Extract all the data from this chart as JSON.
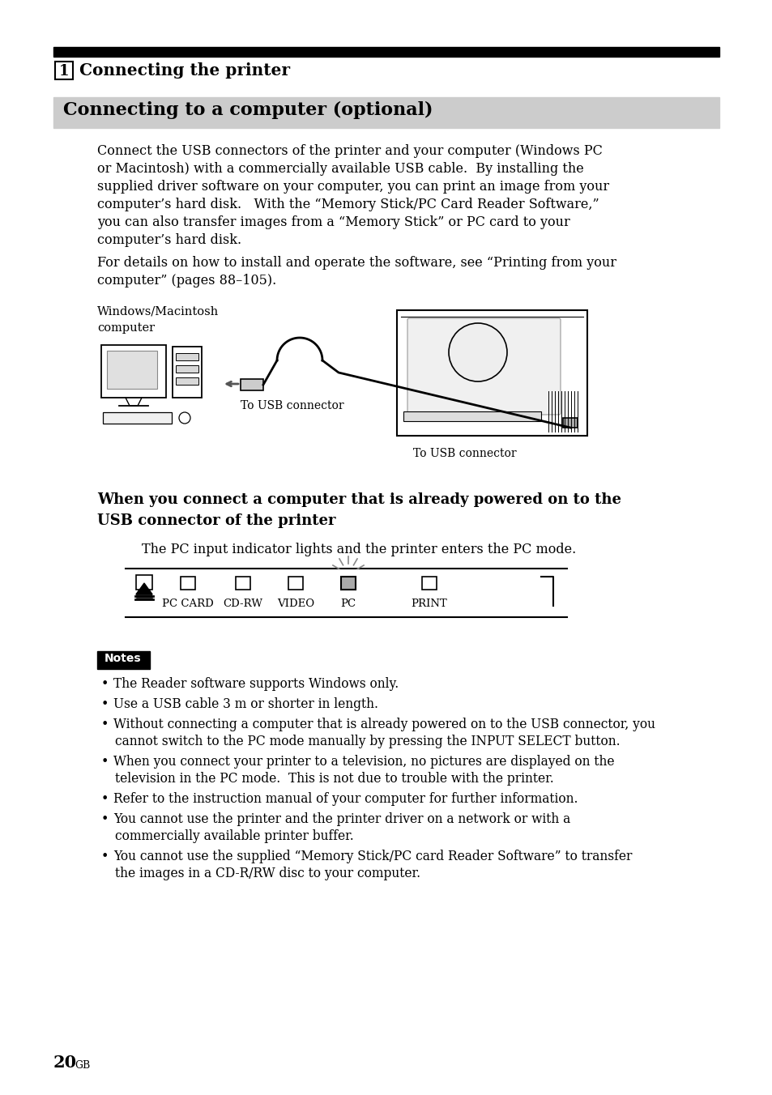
{
  "page_bg": "#ffffff",
  "top_bar_color": "#000000",
  "section_bg": "#cccccc",
  "notes_bg": "#000000",
  "notes_text_color": "#ffffff",
  "title1_num": "1",
  "title1_text": "Connecting the printer",
  "section_title": "Connecting to a computer (optional)",
  "body_text1_lines": [
    "Connect the USB connectors of the printer and your computer (Windows PC",
    "or Macintosh) with a commercially available USB cable.  By installing the",
    "supplied driver software on your computer, you can print an image from your",
    "computer’s hard disk.   With the “Memory Stick/PC Card Reader Software,”",
    "you can also transfer images from a “Memory Stick” or PC card to your",
    "computer’s hard disk."
  ],
  "body_text2_lines": [
    "For details on how to install and operate the software, see “Printing from your",
    "computer” (pages 88–105)."
  ],
  "label_computer": "Windows/Macintosh\ncomputer",
  "label_usb1": "To USB connector",
  "label_usb2": "To USB connector",
  "subheading_lines": [
    "When you connect a computer that is already powered on to the",
    "USB connector of the printer"
  ],
  "pc_mode_text": "The PC input indicator lights and the printer enters the PC mode.",
  "notes_label": "Notes",
  "bullet_points": [
    "The Reader software supports Windows only.",
    "Use a USB cable 3 m or shorter in length.",
    "Without connecting a computer that is already powered on to the USB connector, you\ncannot switch to the PC mode manually by pressing the INPUT SELECT button.",
    "When you connect your printer to a television, no pictures are displayed on the\ntelevision in the PC mode.  This is not due to trouble with the printer.",
    "Refer to the instruction manual of your computer for further information.",
    "You cannot use the printer and the printer driver on a network or with a\ncommercially available printer buffer.",
    "You cannot use the supplied “Memory Stick/PC card Reader Software” to transfer\nthe images in a CD-R/RW disc to your computer."
  ],
  "page_number": "20",
  "page_number_sup": "GB"
}
